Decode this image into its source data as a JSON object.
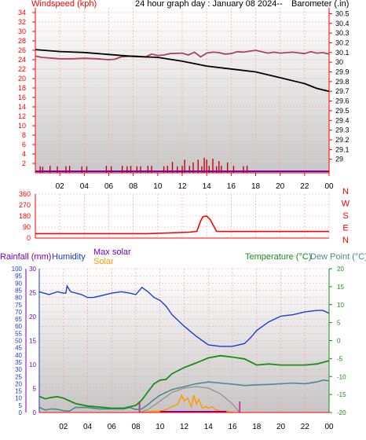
{
  "colors": {
    "axis_red": "#ff0000",
    "grid_red": "#ff9a9a",
    "wind": "#cc0000",
    "baro": "#000000",
    "gust": "#b04060",
    "blue": "#1d3bd6",
    "green": "#1a8c1a",
    "teal": "#4a8c8c",
    "orange": "#ff9900",
    "purple": "#7a00b4",
    "maxsolar": "#999999",
    "bg_top": "#ffffff",
    "bg_bottom": "#c8c8c8"
  },
  "hours": [
    "02",
    "04",
    "06",
    "08",
    "10",
    "12",
    "14",
    "16",
    "18",
    "20",
    "22",
    "00"
  ],
  "chart_data": [
    {
      "type": "line",
      "id": "wind_baro",
      "title": "24 hour graph day : January 08 2024--",
      "ylabel_left": "Windspeed (kph)",
      "ylabel_right": "Barometer (.in)",
      "y_left_ticks": [
        "2",
        "4",
        "6",
        "8",
        "10",
        "12",
        "14",
        "16",
        "18",
        "20",
        "22",
        "24",
        "26",
        "28",
        "30",
        "32",
        "34"
      ],
      "y_left_range": [
        0,
        35
      ],
      "y_right_ticks": [
        "29",
        "29.1",
        "29.2",
        "29.3",
        "29.4",
        "29.5",
        "29.6",
        "29.7",
        "29.8",
        "29.9",
        "30",
        "30.1",
        "30.2",
        "30.3",
        "30.4",
        "30.5"
      ],
      "y_right_range": [
        28.86,
        30.56
      ],
      "series": [
        {
          "key": "barometer",
          "axis": "right",
          "x": [
            0,
            2,
            4,
            6,
            8,
            10,
            12,
            14,
            16,
            18,
            20,
            22,
            23,
            24
          ],
          "y": [
            30.13,
            30.11,
            30.1,
            30.08,
            30.06,
            30.05,
            30.01,
            29.96,
            29.93,
            29.9,
            29.84,
            29.78,
            29.73,
            29.7
          ]
        },
        {
          "key": "gust",
          "axis": "left",
          "x": [
            0,
            0.5,
            1,
            2,
            3,
            4,
            5,
            6,
            6.5,
            7,
            8,
            9,
            9.5,
            10,
            10.5,
            11,
            12,
            12.5,
            13,
            13.5,
            14,
            14.5,
            15,
            15.5,
            16,
            16.5,
            17,
            18,
            19,
            19.5,
            20,
            21,
            22,
            22.5,
            23,
            23.5,
            24
          ],
          "y": [
            24.8,
            24.5,
            24.4,
            24.2,
            24.2,
            24.3,
            24.2,
            24.0,
            24.1,
            24.6,
            24.8,
            24.6,
            25.2,
            24.9,
            25.0,
            25.3,
            25.4,
            25.0,
            25.6,
            24.6,
            25.4,
            25.6,
            25.5,
            25.2,
            25.3,
            25.7,
            25.6,
            26.0,
            25.4,
            25.6,
            25.4,
            25.6,
            25.3,
            25.7,
            25.4,
            25.5,
            25.2
          ]
        },
        {
          "key": "wind_bars",
          "axis": "left",
          "x": [
            0.4,
            0.6,
            1.2,
            1.8,
            2.5,
            2.8,
            3.8,
            4.2,
            5.8,
            6.2,
            7.1,
            7.5,
            7.8,
            8.3,
            8.6,
            9.2,
            9.5,
            10.5,
            10.8,
            11.2,
            11.6,
            12.0,
            12.2,
            12.6,
            12.9,
            13.3,
            13.6,
            13.8,
            14.0,
            14.2,
            14.5,
            14.8,
            15.0,
            15.2,
            15.7,
            16.2,
            17.0,
            17.3
          ],
          "y": [
            1.4,
            1.3,
            1.5,
            1.4,
            1.4,
            1.5,
            1.4,
            1.4,
            1.5,
            1.4,
            1.5,
            1.4,
            1.5,
            1.4,
            1.4,
            1.5,
            1.5,
            1.4,
            1.5,
            2.3,
            1.4,
            1.5,
            2.8,
            1.5,
            2.2,
            2.8,
            1.4,
            3.2,
            2.8,
            1.5,
            3.0,
            1.4,
            2.5,
            1.5,
            2.2,
            1.5,
            1.4,
            1.5
          ]
        }
      ]
    },
    {
      "type": "line",
      "id": "direction",
      "y_left_ticks": [
        "0",
        "90",
        "180",
        "270",
        "360"
      ],
      "y_range": [
        0,
        360
      ],
      "direction_labels": [
        "N",
        "W",
        "S",
        "E",
        "N"
      ],
      "series": [
        {
          "key": "wind_direction",
          "x": [
            0,
            9,
            9.1,
            12.6,
            13.2,
            13.5,
            13.7,
            14.0,
            14.3,
            14.8,
            15.0,
            24
          ],
          "y": [
            36,
            36,
            36,
            48,
            55,
            140,
            175,
            180,
            150,
            55,
            54,
            54
          ]
        }
      ]
    },
    {
      "type": "line",
      "id": "temp_hum_solar",
      "labels": {
        "rainfall": "Rainfall (mm)",
        "humidity": "Humidity",
        "max_solar": "Max solar",
        "solar": "Solar",
        "temperature": "Temperature (°C)",
        "dewpoint": "Dew Point (°C)"
      },
      "y_left_ticks": [
        "0",
        "5",
        "10",
        "15",
        "20",
        "25",
        "30",
        "35",
        "40",
        "45",
        "50",
        "55",
        "60",
        "65",
        "70",
        "75",
        "80",
        "85",
        "90",
        "95",
        "100"
      ],
      "y_left_range": [
        0,
        100
      ],
      "y_rain_ticks": [
        "0",
        "5",
        "10",
        "15",
        "20",
        "25",
        "30"
      ],
      "y_right_ticks": [
        "-20",
        "-15",
        "-10",
        "-5",
        "0",
        "5",
        "10",
        "15",
        "20"
      ],
      "y_right_range": [
        -20,
        20
      ],
      "series": [
        {
          "key": "humidity",
          "axis": "left",
          "x": [
            0,
            0.8,
            1.5,
            2.0,
            2.2,
            2.3,
            2.6,
            3.5,
            4.0,
            4.5,
            5.5,
            6.0,
            6.8,
            7.5,
            8.0,
            8.5,
            9.0,
            9.5,
            10.0,
            10.5,
            11.0,
            12.0,
            13.0,
            13.5,
            14.0,
            15.0,
            16.0,
            17.0,
            17.5,
            18.0,
            19.0,
            20.0,
            21.0,
            22.0,
            23.0,
            23.5,
            24.0
          ],
          "y": [
            84,
            82,
            84,
            83,
            83,
            88,
            84,
            82,
            80,
            80,
            82,
            83,
            84,
            83,
            82,
            87,
            84,
            80,
            78,
            74,
            68,
            60,
            53,
            50,
            47,
            46,
            46,
            48,
            52,
            57,
            63,
            67,
            68,
            70,
            71,
            71,
            69
          ]
        },
        {
          "key": "temperature",
          "axis": "right",
          "x": [
            0,
            0.5,
            1.0,
            1.5,
            2.0,
            3.0,
            4.0,
            5.0,
            6.0,
            7.0,
            8.0,
            8.5,
            9.0,
            9.5,
            10.0,
            10.5,
            11.0,
            12.0,
            13.0,
            14.0,
            15.0,
            16.0,
            17.0,
            18.0,
            19.0,
            20.0,
            21.0,
            22.0,
            23.0,
            24.0
          ],
          "y": [
            -15.5,
            -16.2,
            -15.8,
            -15.6,
            -16.0,
            -17.5,
            -18.2,
            -18.5,
            -18.8,
            -18.8,
            -18.0,
            -16.5,
            -14.2,
            -12.0,
            -11.0,
            -10.8,
            -9.2,
            -7.5,
            -6.2,
            -4.8,
            -4.2,
            -4.6,
            -5.1,
            -6.8,
            -6.5,
            -6.8,
            -6.8,
            -6.8,
            -6.5,
            -5.6
          ]
        },
        {
          "key": "dewpoint",
          "axis": "right",
          "x": [
            0,
            0.5,
            1.0,
            1.5,
            2.0,
            2.5,
            3.0,
            4.0,
            5.0,
            6.0,
            7.0,
            7.5,
            8.0,
            8.5,
            9.0,
            9.5,
            10.0,
            11.0,
            12.0,
            13.0,
            14.0,
            15.0,
            16.0,
            17.0,
            18.0,
            19.0,
            20.0,
            21.0,
            22.0,
            23.0,
            23.5,
            24.0
          ],
          "y": [
            -18.6,
            -19.3,
            -19.0,
            -19.1,
            -19.5,
            -19.6,
            -18.6,
            -18.6,
            -19.0,
            -19.0,
            -19.0,
            -18.6,
            -19.2,
            -19.0,
            -17.8,
            -16.4,
            -15.2,
            -13.6,
            -12.8,
            -12.0,
            -11.5,
            -11.8,
            -12.1,
            -12.5,
            -12.3,
            -12.2,
            -12.0,
            -11.8,
            -12.0,
            -11.5,
            -11.0,
            -11.2
          ]
        },
        {
          "key": "max_solar",
          "axis": "left",
          "x": [
            8.3,
            9,
            10,
            11,
            12,
            13,
            14,
            15,
            16,
            16.6
          ],
          "y": [
            0,
            2,
            8,
            14,
            17,
            18,
            17,
            13,
            6,
            0
          ]
        },
        {
          "key": "solar",
          "axis": "left",
          "x": [
            8.6,
            9.5,
            10,
            10.5,
            11,
            11.5,
            11.8,
            12,
            12.3,
            12.6,
            12.8,
            13.0,
            13.2,
            13.5,
            13.8,
            14,
            14.3,
            14.6,
            15,
            15.5,
            16
          ],
          "y": [
            0,
            1,
            1,
            2,
            4,
            6,
            12,
            8,
            10,
            4,
            12,
            6,
            9,
            3,
            4,
            3,
            4,
            2,
            1,
            1,
            0
          ]
        },
        {
          "key": "rainfall",
          "axis": "rain",
          "x": [
            0,
            24
          ],
          "y": [
            0,
            0
          ]
        }
      ]
    }
  ]
}
